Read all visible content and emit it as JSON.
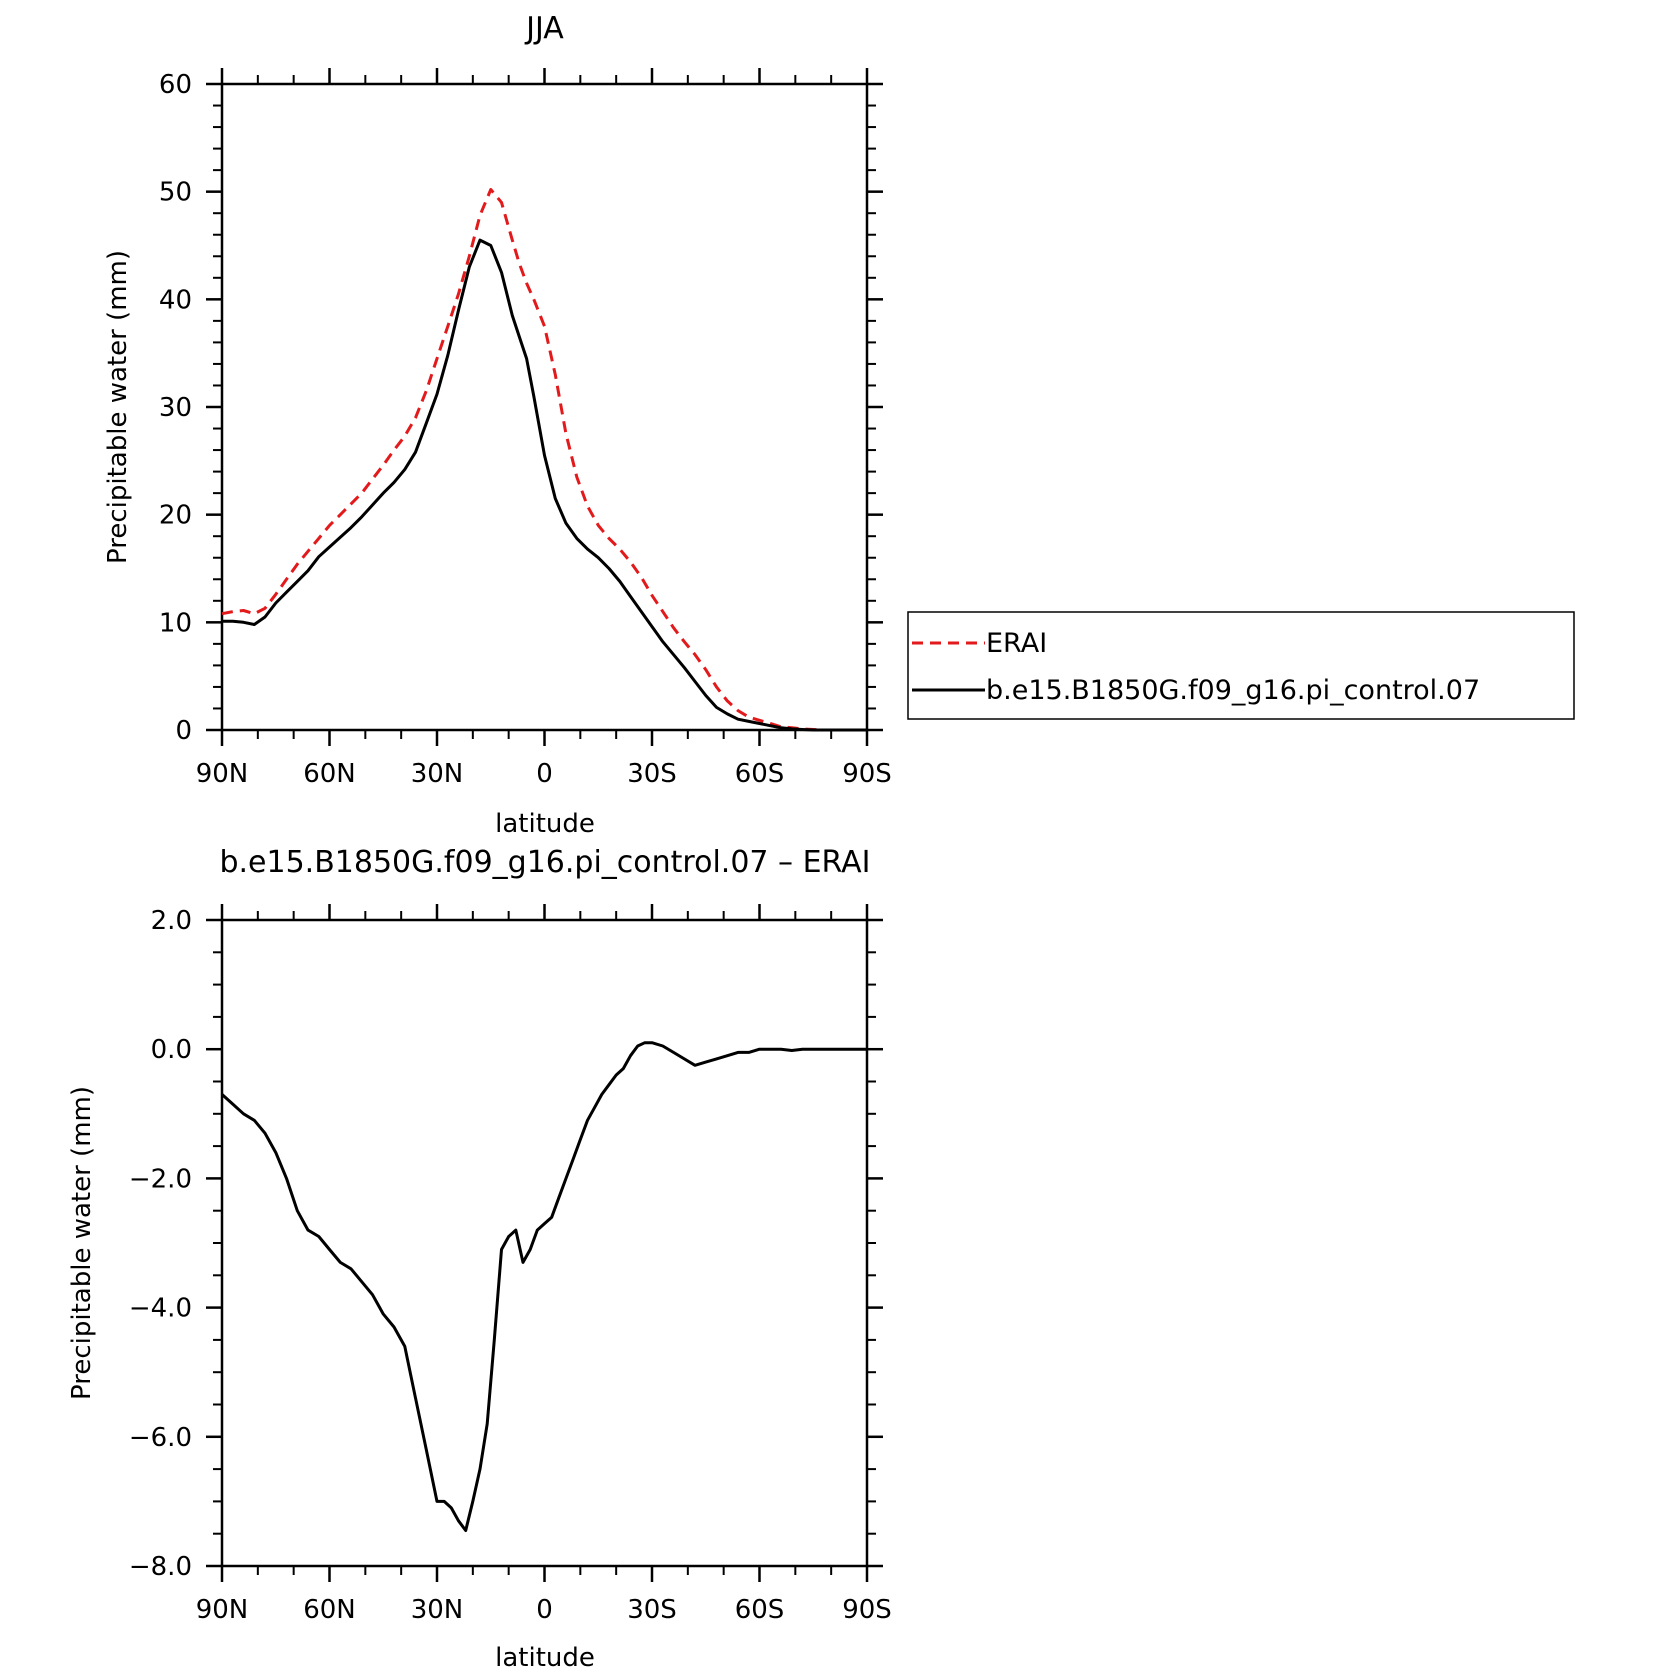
{
  "chart_data": [
    {
      "type": "line",
      "title": "JJA",
      "xlabel": "latitude",
      "ylabel": "Precipitable water (mm)",
      "xlim": [
        90,
        -90
      ],
      "ylim": [
        0,
        60
      ],
      "x_ticks": [
        90,
        60,
        30,
        0,
        -30,
        -60,
        -90
      ],
      "x_tick_labels": [
        "90N",
        "60N",
        "30N",
        "0",
        "30S",
        "60S",
        "90S"
      ],
      "y_ticks": [
        0,
        10,
        20,
        30,
        40,
        50,
        60
      ],
      "y_tick_labels": [
        "0",
        "10",
        "20",
        "30",
        "40",
        "50",
        "60"
      ],
      "legend": {
        "placement": "right"
      },
      "series": [
        {
          "name": "ERAI",
          "color": "#e31a1c",
          "style": "dashed",
          "x": [
            90,
            87,
            84,
            81,
            78,
            75,
            72,
            69,
            66,
            63,
            60,
            57,
            54,
            51,
            48,
            45,
            42,
            39,
            36,
            33,
            30,
            27,
            24,
            21,
            18,
            15,
            12,
            9,
            7,
            5,
            3,
            0,
            -3,
            -6,
            -9,
            -12,
            -15,
            -18,
            -21,
            -24,
            -27,
            -30,
            -33,
            -36,
            -39,
            -42,
            -45,
            -48,
            -51,
            -54,
            -57,
            -60,
            -63,
            -66,
            -69,
            -72,
            -75,
            -78,
            -81,
            -84,
            -87,
            -90
          ],
          "values": [
            10.8,
            11.0,
            11.1,
            10.8,
            11.3,
            12.6,
            14.0,
            15.4,
            16.6,
            17.8,
            19.0,
            20.0,
            21.0,
            22.0,
            23.3,
            24.6,
            26.0,
            27.3,
            29.0,
            31.5,
            34.5,
            37.5,
            40.5,
            44.0,
            47.8,
            50.2,
            49.0,
            45.5,
            43.3,
            41.5,
            40.0,
            37.5,
            33.0,
            27.5,
            23.5,
            20.8,
            19.0,
            17.8,
            16.8,
            15.6,
            14.2,
            12.5,
            11.0,
            9.5,
            8.2,
            7.0,
            5.6,
            4.0,
            2.7,
            1.8,
            1.2,
            0.9,
            0.6,
            0.3,
            0.2,
            0.1,
            0.05,
            0.0,
            0.0,
            0.0,
            0.0,
            0.0
          ]
        },
        {
          "name": "b.e15.B1850G.f09_g16.pi_control.07",
          "color": "#000000",
          "style": "solid",
          "x": [
            90,
            87,
            84,
            81,
            78,
            75,
            72,
            69,
            66,
            63,
            60,
            57,
            54,
            51,
            48,
            45,
            42,
            39,
            36,
            33,
            30,
            27,
            24,
            21,
            18,
            15,
            12,
            9,
            7,
            5,
            3,
            0,
            -3,
            -6,
            -9,
            -12,
            -15,
            -18,
            -21,
            -24,
            -27,
            -30,
            -33,
            -36,
            -39,
            -42,
            -45,
            -48,
            -51,
            -54,
            -57,
            -60,
            -63,
            -66,
            -69,
            -72,
            -75,
            -78,
            -81,
            -84,
            -87,
            -90
          ],
          "values": [
            10.1,
            10.1,
            10.0,
            9.8,
            10.5,
            11.8,
            12.8,
            13.8,
            14.8,
            16.1,
            17.0,
            17.9,
            18.8,
            19.8,
            20.9,
            22.0,
            23.0,
            24.2,
            25.8,
            28.5,
            31.2,
            34.8,
            39.0,
            43.0,
            45.5,
            45.0,
            42.5,
            38.5,
            36.5,
            34.5,
            31.0,
            25.5,
            21.5,
            19.2,
            17.8,
            16.8,
            16.0,
            15.0,
            13.8,
            12.4,
            11.0,
            9.6,
            8.2,
            7.0,
            5.8,
            4.5,
            3.2,
            2.1,
            1.5,
            1.0,
            0.8,
            0.6,
            0.4,
            0.2,
            0.1,
            0.05,
            0.0,
            0.0,
            0.0,
            0.0,
            0.0,
            0.0
          ]
        }
      ]
    },
    {
      "type": "line",
      "title": "b.e15.B1850G.f09_g16.pi_control.07 – ERAI",
      "xlabel": "latitude",
      "ylabel": "Precipitable water (mm)",
      "xlim": [
        90,
        -90
      ],
      "ylim": [
        -8,
        2
      ],
      "x_ticks": [
        90,
        60,
        30,
        0,
        -30,
        -60,
        -90
      ],
      "x_tick_labels": [
        "90N",
        "60N",
        "30N",
        "0",
        "30S",
        "60S",
        "90S"
      ],
      "y_ticks": [
        -8,
        -6,
        -4,
        -2,
        0,
        2
      ],
      "y_tick_labels": [
        "−8.0",
        "−6.0",
        "−4.0",
        "−2.0",
        "0.0",
        "2.0"
      ],
      "series": [
        {
          "color": "#000000",
          "style": "solid",
          "x": [
            90,
            87,
            84,
            81,
            78,
            75,
            72,
            69,
            66,
            63,
            60,
            57,
            54,
            51,
            48,
            45,
            42,
            39,
            36,
            33,
            30,
            28,
            26,
            24,
            22,
            20,
            18,
            16,
            14,
            12,
            10,
            8,
            6,
            4,
            2,
            0,
            -2,
            -4,
            -6,
            -8,
            -10,
            -12,
            -14,
            -16,
            -18,
            -20,
            -22,
            -24,
            -26,
            -28,
            -30,
            -33,
            -36,
            -39,
            -42,
            -45,
            -48,
            -51,
            -54,
            -57,
            -60,
            -63,
            -66,
            -69,
            -72,
            -75,
            -78,
            -81,
            -84,
            -87,
            -90
          ],
          "values": [
            -0.7,
            -0.85,
            -1.0,
            -1.1,
            -1.3,
            -1.6,
            -2.0,
            -2.5,
            -2.8,
            -2.9,
            -3.1,
            -3.3,
            -3.4,
            -3.6,
            -3.8,
            -4.1,
            -4.3,
            -4.6,
            -5.4,
            -6.2,
            -7.0,
            -7.0,
            -7.1,
            -7.3,
            -7.45,
            -7.0,
            -6.5,
            -5.8,
            -4.5,
            -3.1,
            -2.9,
            -2.8,
            -3.3,
            -3.1,
            -2.8,
            -2.7,
            -2.6,
            -2.3,
            -2.0,
            -1.7,
            -1.4,
            -1.1,
            -0.9,
            -0.7,
            -0.55,
            -0.4,
            -0.3,
            -0.1,
            0.05,
            0.1,
            0.1,
            0.05,
            -0.05,
            -0.15,
            -0.25,
            -0.2,
            -0.15,
            -0.1,
            -0.05,
            -0.05,
            0.0,
            0.0,
            0.0,
            -0.02,
            0.0,
            0.0,
            0.0,
            0.0,
            0.0,
            0.0,
            0.0
          ]
        }
      ]
    }
  ]
}
